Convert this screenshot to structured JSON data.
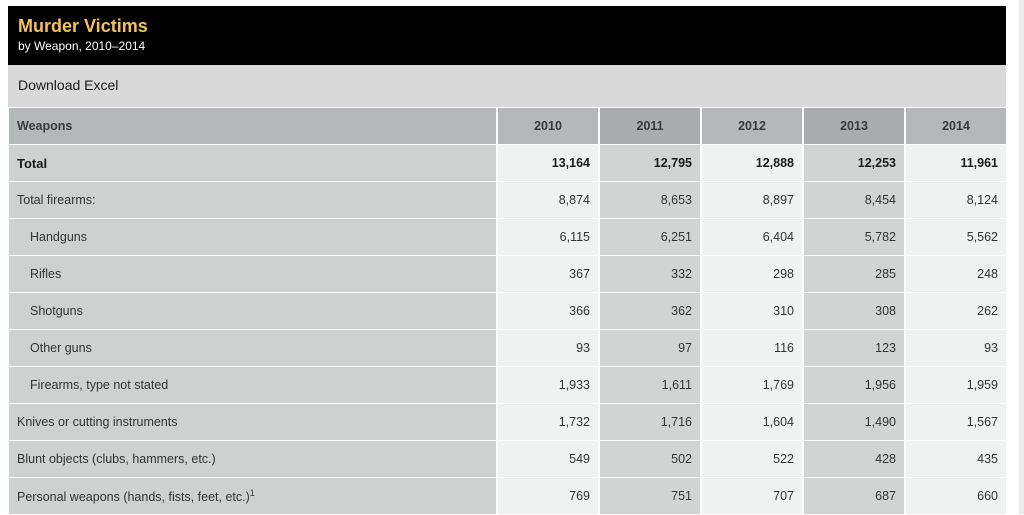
{
  "header": {
    "title": "Murder Victims",
    "subtitle": "by Weapon, 2010–2014"
  },
  "download": {
    "label": "Download Excel"
  },
  "table": {
    "weapons_header": "Weapons",
    "years": [
      "2010",
      "2011",
      "2012",
      "2013",
      "2014"
    ],
    "rows": [
      {
        "label": "Total",
        "values": [
          "13,164",
          "12,795",
          "12,888",
          "12,253",
          "11,961"
        ]
      },
      {
        "label": "Total firearms:",
        "values": [
          "8,874",
          "8,653",
          "8,897",
          "8,454",
          "8,124"
        ]
      },
      {
        "label": "Handguns",
        "values": [
          "6,115",
          "6,251",
          "6,404",
          "5,782",
          "5,562"
        ]
      },
      {
        "label": "Rifles",
        "values": [
          "367",
          "332",
          "298",
          "285",
          "248"
        ]
      },
      {
        "label": "Shotguns",
        "values": [
          "366",
          "362",
          "310",
          "308",
          "262"
        ]
      },
      {
        "label": "Other guns",
        "values": [
          "93",
          "97",
          "116",
          "123",
          "93"
        ]
      },
      {
        "label": "Firearms, type not stated",
        "values": [
          "1,933",
          "1,611",
          "1,769",
          "1,956",
          "1,959"
        ]
      },
      {
        "label": "Knives or cutting instruments",
        "values": [
          "1,732",
          "1,716",
          "1,604",
          "1,490",
          "1,567"
        ]
      },
      {
        "label": "Blunt objects (clubs, hammers, etc.)",
        "values": [
          "549",
          "502",
          "522",
          "428",
          "435"
        ]
      },
      {
        "label": "Personal weapons (hands, fists, feet, etc.)",
        "footnote": "1",
        "values": [
          "769",
          "751",
          "707",
          "687",
          "660"
        ]
      }
    ]
  },
  "colors": {
    "title_bar_bg": "#000000",
    "title_text": "#f7c34a",
    "download_bar_bg": "#d9d9d9",
    "header_bg": "#b4b8b8",
    "label_bg": "#cfd1d1",
    "value_bg": "#f0f1f1",
    "value_alt_bg": "#d2d4d4"
  }
}
